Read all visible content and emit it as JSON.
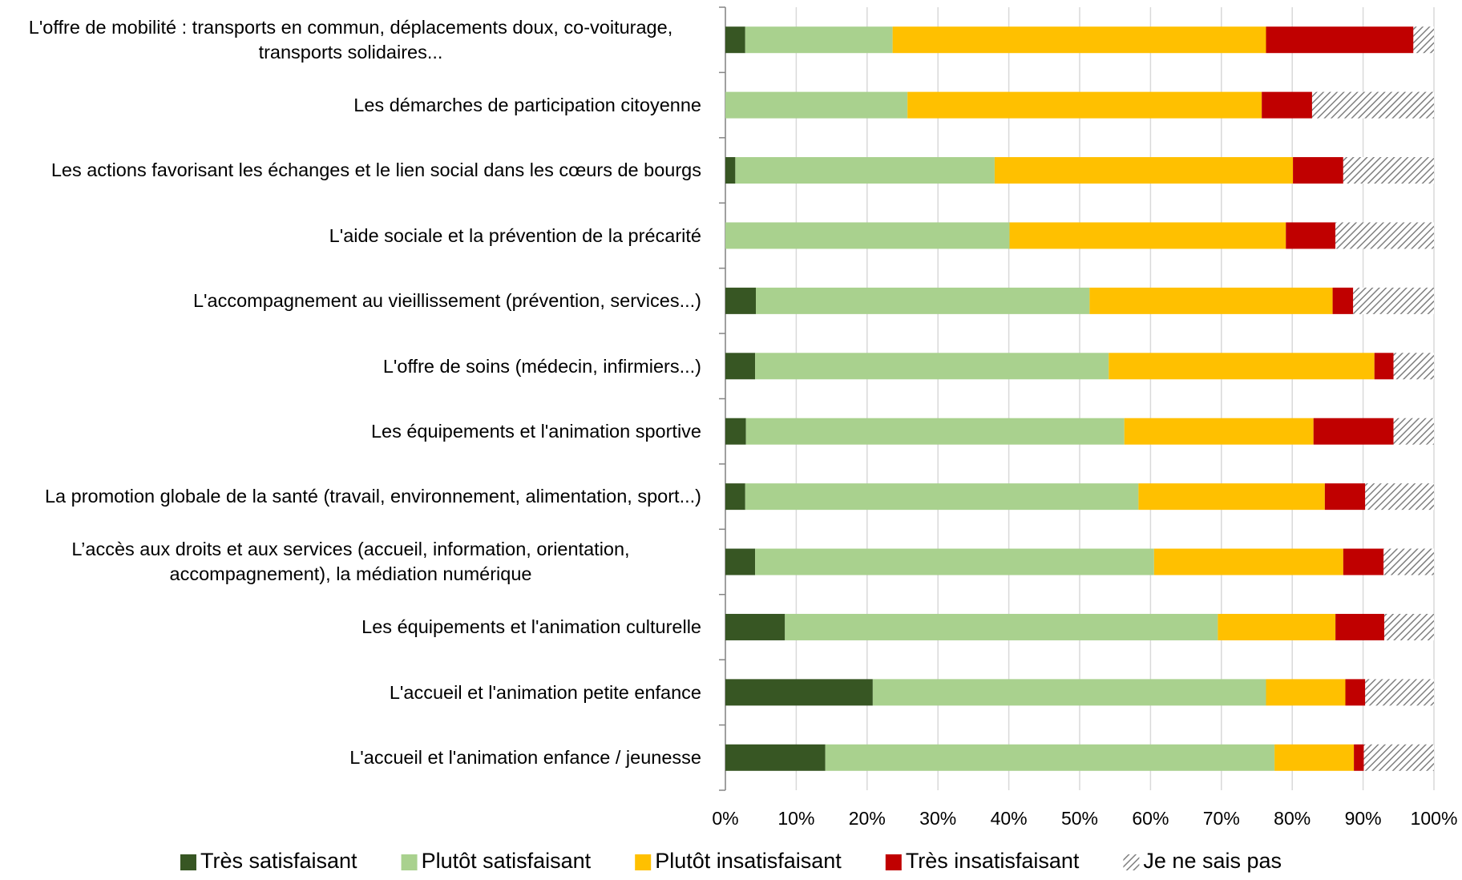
{
  "chart_data": {
    "type": "stacked_barh",
    "categories": [
      "L'offre de mobilité : transports en commun, déplacements doux, co-voiturage, transports solidaires...",
      "Les démarches de participation citoyenne",
      "Les actions favorisant les échanges et le lien social dans les cœurs de bourgs",
      "L'aide sociale et la prévention de la précarité",
      "L'accompagnement au vieillissement (prévention, services...)",
      "L'offre de soins (médecin, infirmiers...)",
      "Les équipements et l'animation sportive",
      "La promotion globale de la santé (travail, environnement, alimentation, sport...)",
      "L’accès aux droits et aux services (accueil, information, orientation, accompagnement), la médiation numérique",
      "Les équipements et l'animation culturelle",
      "L'accueil et l'animation petite enfance",
      "L'accueil et l'animation enfance / jeunesse"
    ],
    "series": [
      {
        "name": "Très satisfaisant",
        "color": "#375623",
        "values": [
          2.8,
          0,
          1.4,
          0,
          4.3,
          4.2,
          2.9,
          2.8,
          4.2,
          8.4,
          20.8,
          14.1
        ]
      },
      {
        "name": "Plutôt satisfaisant",
        "color": "#a9d18e",
        "values": [
          20.8,
          25.7,
          36.6,
          40.1,
          47.1,
          49.9,
          53.4,
          55.5,
          56.3,
          61.1,
          55.5,
          63.4
        ]
      },
      {
        "name": "Plutôt insatisfaisant",
        "color": "#ffc000",
        "values": [
          52.7,
          50.0,
          42.1,
          39.0,
          34.3,
          37.5,
          26.7,
          26.3,
          26.7,
          16.6,
          11.2,
          11.2
        ]
      },
      {
        "name": "Très insatisfaisant",
        "color": "#c00000",
        "values": [
          20.8,
          7.1,
          7.1,
          7.0,
          2.9,
          2.7,
          11.3,
          5.7,
          5.7,
          6.9,
          2.8,
          1.4
        ]
      },
      {
        "name": "Je ne sais pas",
        "color": "#7f7f7f",
        "pattern": "hatch",
        "values": [
          2.9,
          17.2,
          12.8,
          13.9,
          11.4,
          5.7,
          5.7,
          9.7,
          7.1,
          7.0,
          9.7,
          9.9
        ]
      }
    ],
    "xlim": [
      0,
      100
    ],
    "xticks": [
      {
        "value": 0,
        "label": "0%"
      },
      {
        "value": 10,
        "label": "10%"
      },
      {
        "value": 20,
        "label": "20%"
      },
      {
        "value": 30,
        "label": "30%"
      },
      {
        "value": 40,
        "label": "40%"
      },
      {
        "value": 50,
        "label": "50%"
      },
      {
        "value": 60,
        "label": "60%"
      },
      {
        "value": 70,
        "label": "70%"
      },
      {
        "value": 80,
        "label": "80%"
      },
      {
        "value": 90,
        "label": "90%"
      },
      {
        "value": 100,
        "label": "100%"
      }
    ],
    "grid": true,
    "legend": "bottom"
  }
}
